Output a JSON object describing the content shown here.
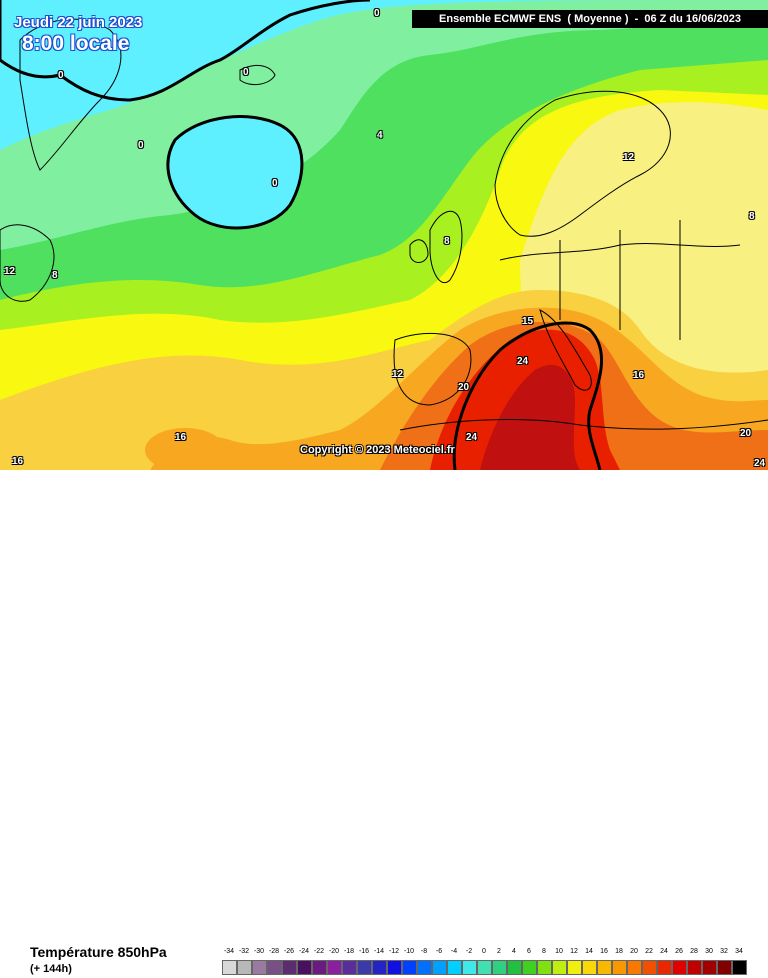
{
  "header": {
    "date": "Jeudi 22 juin 2023",
    "time": "8:00 locale",
    "model_run": "Ensemble ECMWF ENS  ( Moyenne )  -  06 Z du 16/06/2023"
  },
  "copyright": "Copyright © 2023 Meteociel.fr",
  "footer": {
    "variable": "Température 850hPa",
    "lead_time": "(+ 144h)"
  },
  "isotherm_labels": [
    "0",
    "0",
    "0",
    "0",
    "0",
    "4",
    "8",
    "12",
    "8",
    "12",
    "8",
    "15",
    "12",
    "16",
    "24",
    "20",
    "24",
    "16",
    "16",
    "20",
    "24"
  ],
  "legend": {
    "unit_values": [
      "-34",
      "-32",
      "-30",
      "-28",
      "-26",
      "-24",
      "-22",
      "-20",
      "-18",
      "-16",
      "-14",
      "-12",
      "-10",
      "-8",
      "-6",
      "-4",
      "-2",
      "0",
      "2",
      "4",
      "6",
      "8",
      "10",
      "12",
      "14",
      "16",
      "18",
      "20",
      "22",
      "24",
      "26",
      "28",
      "30",
      "32",
      "34"
    ],
    "colors": [
      "#d8d8d8",
      "#b8b8b8",
      "#9a7aa0",
      "#7a4f86",
      "#5c2c6e",
      "#4a1060",
      "#6b1a80",
      "#8a1fa0",
      "#5a2e9a",
      "#3a3aa8",
      "#2424c4",
      "#1010e0",
      "#0040ff",
      "#0070ff",
      "#00a0ff",
      "#00d0ff",
      "#40e8e8",
      "#40e0b0",
      "#30d080",
      "#20c040",
      "#40d020",
      "#80e010",
      "#c0ee10",
      "#f0f010",
      "#f8d808",
      "#f8b800",
      "#f89800",
      "#f87800",
      "#f05000",
      "#e82800",
      "#e00000",
      "#c00000",
      "#a00000",
      "#800000",
      "#000000"
    ]
  },
  "colors": {
    "deep_sea_cyan": "#5ff0ff",
    "light_green": "#80f0a0",
    "green": "#50e060",
    "lime": "#a8f020",
    "yellow": "#f8f810",
    "light_yellow": "#f8f080",
    "pale_orange": "#f8d040",
    "orange": "#f8a820",
    "dark_orange": "#f07018",
    "red": "#e82000",
    "dark_red": "#c01010"
  }
}
